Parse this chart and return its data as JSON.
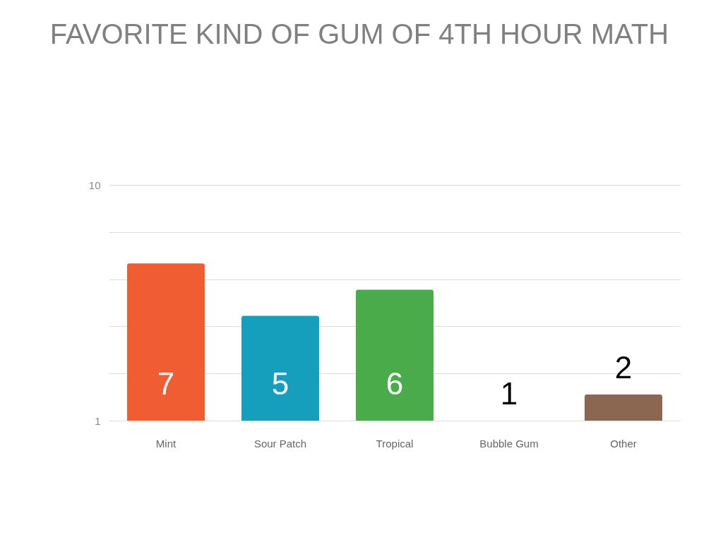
{
  "chart_data": {
    "type": "bar",
    "title": "FAVORITE KIND OF GUM OF 4TH HOUR MATH",
    "categories": [
      "Mint",
      "Sour Patch",
      "Tropical",
      "Bubble Gum",
      "Other"
    ],
    "values": [
      7,
      5,
      6,
      1,
      2
    ],
    "colors": [
      "#f05d32",
      "#169fbc",
      "#4aab4b",
      "#e9b32a",
      "#8b6651"
    ],
    "ylim": [
      1,
      10
    ],
    "yticks": [
      1,
      {
        "value": 2.8,
        "label": null
      },
      {
        "value": 4.6,
        "label": null
      },
      {
        "value": 6.4,
        "label": null
      },
      {
        "value": 8.2,
        "label": null
      },
      10
    ],
    "grid": true,
    "data_labels": true
  }
}
